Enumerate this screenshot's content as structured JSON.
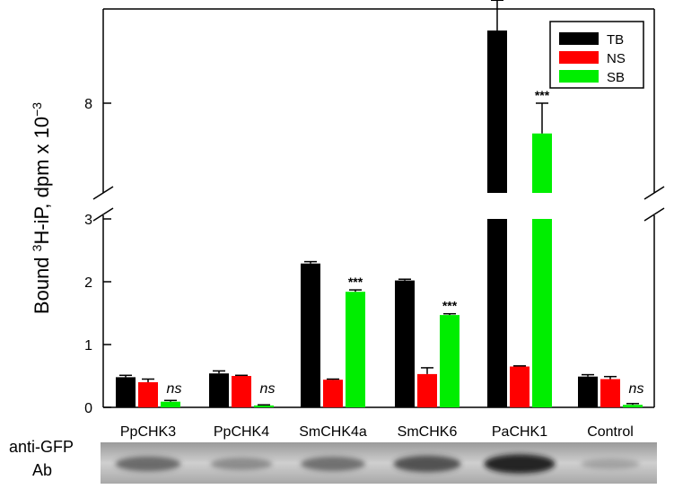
{
  "chart_data": {
    "type": "bar",
    "ylabel_parts": {
      "prefix": "Bound ",
      "sup1": "3",
      "mid": "H-iP, dpm x 10",
      "sup2": "−3"
    },
    "categories": [
      "PpCHK3",
      "PpCHK4",
      "SmCHK4a",
      "SmCHK6",
      "PaCHK1",
      "Control"
    ],
    "series": [
      {
        "name": "TB",
        "color": "#000000",
        "values": [
          0.48,
          0.54,
          2.29,
          2.02,
          9.2,
          0.49
        ],
        "errors": [
          0.03,
          0.04,
          0.03,
          0.02,
          0.5,
          0.03
        ]
      },
      {
        "name": "NS",
        "color": "#ff0000",
        "values": [
          0.4,
          0.5,
          0.44,
          0.53,
          0.65,
          0.45
        ],
        "errors": [
          0.05,
          0.01,
          0.01,
          0.1,
          0.01,
          0.04
        ]
      },
      {
        "name": "SB",
        "color": "#00ee00",
        "values": [
          0.09,
          0.03,
          1.84,
          1.47,
          7.5,
          0.04
        ],
        "errors": [
          0.02,
          0.01,
          0.03,
          0.02,
          0.5,
          0.02
        ]
      }
    ],
    "significance": [
      "ns",
      "ns",
      "***",
      "***",
      "***",
      "ns"
    ],
    "y_lower": {
      "ylim": [
        0,
        3
      ],
      "ticks": [
        "0",
        "1",
        "2",
        "3"
      ]
    },
    "y_upper": {
      "visible_ticks": [
        "8"
      ]
    },
    "axis_break": true,
    "legend_position": "top-right"
  },
  "blot": {
    "label_line1": "anti-GFP",
    "label_line2": "Ab",
    "band_intensities": [
      0.55,
      0.3,
      0.5,
      0.7,
      0.95,
      0.1
    ]
  }
}
